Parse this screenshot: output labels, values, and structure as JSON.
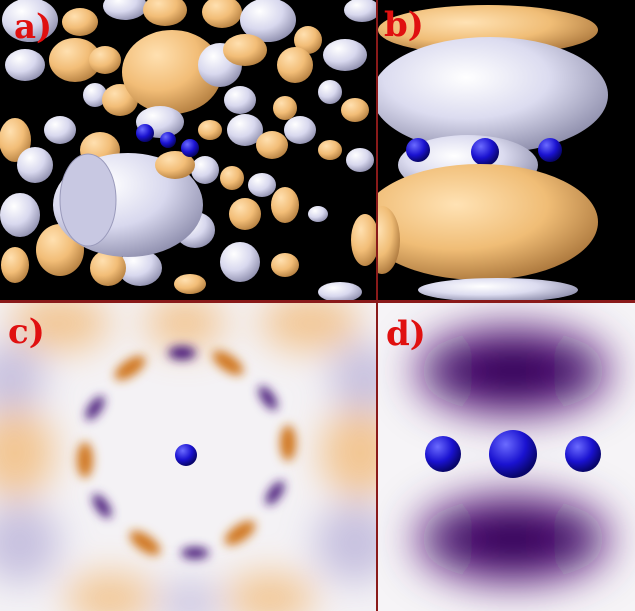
{
  "panels": [
    {
      "id": "a",
      "label": "a)"
    },
    {
      "id": "b",
      "label": "b)"
    },
    {
      "id": "c",
      "label": "c)"
    },
    {
      "id": "d",
      "label": "d)"
    }
  ],
  "colors": {
    "label": "#e01010",
    "divider": "#8a1a1a",
    "lobe_orange": "#f4c07a",
    "lobe_lavender": "#dcdcf0",
    "atom_blue": "#1a12c8",
    "density_purple": "#4a106a",
    "density_orange": "#e08a20"
  }
}
